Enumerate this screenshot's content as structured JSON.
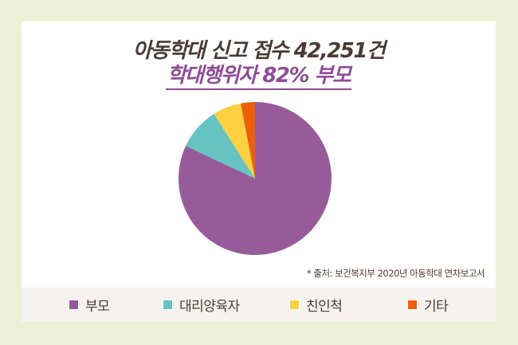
{
  "header": {
    "title": "아동학대 신고 접수 42,251건",
    "subtitle": "학대행위자 82% 부모"
  },
  "source_note": "* 출처: 보건복지부 2020년 아동학대 연차보고서",
  "legend": [
    {
      "label": "부모",
      "color": "#985b9a"
    },
    {
      "label": "대리양육자",
      "color": "#67c3bf"
    },
    {
      "label": "친인척",
      "color": "#fdd042"
    },
    {
      "label": "기타",
      "color": "#ee6007"
    }
  ],
  "colors": {
    "background": "#ecf0d6",
    "panel": "#ffffff",
    "legend_strip": "#f5f2f0",
    "title_text": "#4b3b35",
    "accent": "#8e4c96"
  },
  "chart_data": {
    "type": "pie",
    "title": "아동학대 신고 접수 42,251건",
    "subtitle": "학대행위자 82% 부모",
    "categories": [
      "부모",
      "대리양육자",
      "친인척",
      "기타"
    ],
    "values": [
      82,
      9,
      6,
      3
    ],
    "unit": "%",
    "colors": [
      "#985b9a",
      "#67c3bf",
      "#fdd042",
      "#ee6007"
    ],
    "start_angle_deg": 0,
    "direction": "clockwise",
    "legend_position": "bottom",
    "annotations": [
      "* 출처: 보건복지부 2020년 아동학대 연차보고서"
    ]
  }
}
